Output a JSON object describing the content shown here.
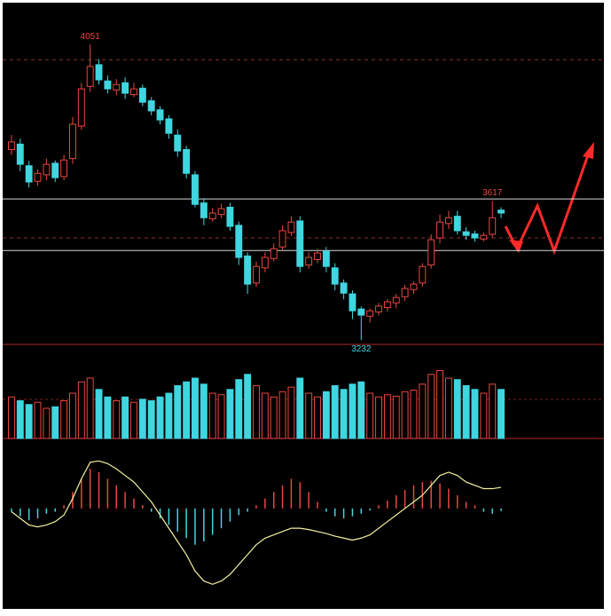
{
  "chart_data": [
    {
      "type": "candlestick",
      "open": [
        3760,
        3775,
        3715,
        3672,
        3690,
        3722,
        3685,
        3735,
        3825,
        3935,
        3995,
        3950,
        3925,
        3945,
        3912,
        3930,
        3895,
        3870,
        3845,
        3800,
        3760,
        3690,
        3612,
        3568,
        3580,
        3600,
        3550,
        3465,
        3390,
        3432,
        3458,
        3490,
        3530,
        3562,
        3440,
        3455,
        3478,
        3432,
        3390,
        3360,
        3318,
        3298,
        3310,
        3322,
        3335,
        3352,
        3372,
        3390,
        3440,
        3515,
        3555,
        3575,
        3532,
        3526,
        3512,
        3525,
        3592
      ],
      "high": [
        3800,
        3790,
        3728,
        3705,
        3735,
        3730,
        3745,
        3850,
        3945,
        4051,
        4010,
        3965,
        3955,
        3960,
        3945,
        3940,
        3905,
        3880,
        3855,
        3815,
        3770,
        3700,
        3625,
        3598,
        3610,
        3612,
        3560,
        3475,
        3450,
        3475,
        3500,
        3550,
        3575,
        3575,
        3475,
        3485,
        3490,
        3445,
        3400,
        3370,
        3325,
        3320,
        3335,
        3345,
        3360,
        3385,
        3395,
        3445,
        3525,
        3580,
        3590,
        3590,
        3545,
        3535,
        3530,
        3617,
        3600
      ],
      "low": [
        3745,
        3700,
        3655,
        3660,
        3675,
        3670,
        3675,
        3720,
        3815,
        3920,
        3940,
        3915,
        3910,
        3900,
        3905,
        3880,
        3855,
        3830,
        3790,
        3740,
        3680,
        3600,
        3550,
        3560,
        3570,
        3535,
        3440,
        3360,
        3380,
        3420,
        3450,
        3480,
        3520,
        3420,
        3430,
        3445,
        3420,
        3370,
        3345,
        3290,
        3232,
        3280,
        3300,
        3310,
        3320,
        3340,
        3360,
        3380,
        3430,
        3500,
        3540,
        3525,
        3510,
        3505,
        3505,
        3515,
        3570
      ],
      "close": [
        3781,
        3719,
        3670,
        3694,
        3719,
        3682,
        3731,
        3830,
        3928,
        3990,
        3953,
        3928,
        3940,
        3916,
        3928,
        3891,
        3867,
        3842,
        3805,
        3756,
        3694,
        3608,
        3571,
        3584,
        3596,
        3547,
        3461,
        3387,
        3436,
        3461,
        3485,
        3535,
        3559,
        3436,
        3461,
        3473,
        3436,
        3387,
        3362,
        3313,
        3301,
        3313,
        3326,
        3338,
        3350,
        3375,
        3387,
        3436,
        3510,
        3559,
        3571,
        3535,
        3522,
        3515,
        3522,
        3571,
        3584
      ],
      "ylim": [
        3220,
        4162
      ],
      "annotations": [
        4051,
        3617,
        3232
      ],
      "hlines": [
        {
          "value": 4009,
          "style": "dashed"
        },
        {
          "value": 3623,
          "style": "solid"
        },
        {
          "value": 3515,
          "style": "dashed"
        },
        {
          "value": 3480,
          "style": "solid"
        }
      ],
      "up_color": "#e8473f",
      "down_color": "#3fd6e0"
    },
    {
      "type": "bar",
      "values": [
        55,
        50,
        45,
        48,
        40,
        42,
        50,
        60,
        75,
        80,
        65,
        55,
        50,
        55,
        48,
        52,
        50,
        55,
        60,
        70,
        75,
        80,
        72,
        60,
        58,
        65,
        78,
        85,
        70,
        60,
        55,
        62,
        68,
        80,
        60,
        55,
        62,
        70,
        65,
        72,
        75,
        60,
        55,
        58,
        56,
        62,
        64,
        72,
        85,
        90,
        80,
        78,
        70,
        65,
        60,
        72,
        65
      ],
      "ylim": [
        0,
        120
      ]
    },
    {
      "type": "macd",
      "values": [
        -5,
        -12,
        -18,
        -15,
        -8,
        -5,
        5,
        25,
        45,
        60,
        55,
        45,
        35,
        25,
        15,
        5,
        -5,
        -15,
        -25,
        -35,
        -45,
        -55,
        -50,
        -40,
        -30,
        -20,
        -10,
        -5,
        5,
        15,
        25,
        35,
        45,
        40,
        25,
        10,
        -5,
        -12,
        -15,
        -12,
        -8,
        -3,
        5,
        12,
        20,
        28,
        35,
        40,
        42,
        38,
        30,
        20,
        10,
        5,
        -5,
        -8,
        -4
      ],
      "line": {
        "color": "#f3f0a0",
        "values": [
          -5,
          -15,
          -25,
          -28,
          -25,
          -20,
          -10,
          15,
          45,
          70,
          72,
          68,
          60,
          50,
          40,
          25,
          10,
          -10,
          -30,
          -50,
          -70,
          -95,
          -110,
          -115,
          -110,
          -100,
          -85,
          -70,
          -55,
          -45,
          -40,
          -35,
          -30,
          -30,
          -32,
          -35,
          -38,
          -42,
          -45,
          -48,
          -45,
          -40,
          -30,
          -20,
          -10,
          0,
          10,
          20,
          35,
          50,
          55,
          50,
          40,
          35,
          30,
          30,
          32
        ]
      },
      "ylim": [
        -120,
        98
      ]
    }
  ]
}
